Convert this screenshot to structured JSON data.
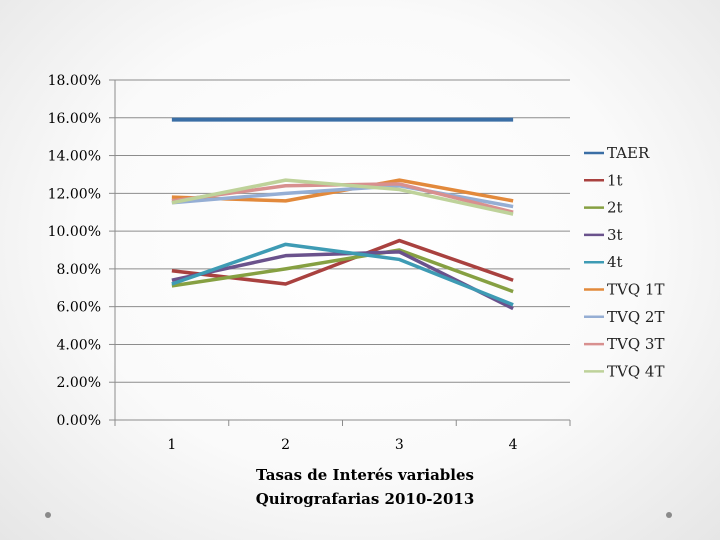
{
  "chart_data": {
    "type": "line",
    "categories": [
      "1",
      "2",
      "3",
      "4"
    ],
    "y_tick_labels": [
      "0.00%",
      "2.00%",
      "4.00%",
      "6.00%",
      "8.00%",
      "10.00%",
      "12.00%",
      "14.00%",
      "16.00%",
      "18.00%"
    ],
    "ylim": [
      0,
      18
    ],
    "grid": true,
    "legend_position": "right",
    "xlabel_lines": [
      "Tasas de Interés variables",
      "Quirografarias 2010-2013"
    ],
    "series": [
      {
        "name": "TAER",
        "color": "#3a6ea5",
        "values": [
          15.9,
          15.9,
          15.9,
          15.9
        ]
      },
      {
        "name": "1t",
        "color": "#a9413f",
        "values": [
          7.9,
          7.2,
          9.5,
          7.4
        ]
      },
      {
        "name": "2t",
        "color": "#86a042",
        "values": [
          7.1,
          8.0,
          9.0,
          6.8
        ]
      },
      {
        "name": "3t",
        "color": "#6a528c",
        "values": [
          7.4,
          8.7,
          8.9,
          5.9
        ]
      },
      {
        "name": "4t",
        "color": "#3e9bb4",
        "values": [
          7.2,
          9.3,
          8.5,
          6.1
        ]
      },
      {
        "name": "TVQ 1T",
        "color": "#e2893b",
        "values": [
          11.8,
          11.6,
          12.7,
          11.6
        ]
      },
      {
        "name": "TVQ 2T",
        "color": "#95aed4",
        "values": [
          11.5,
          12.0,
          12.4,
          11.3
        ]
      },
      {
        "name": "TVQ 3T",
        "color": "#d8908f",
        "values": [
          11.6,
          12.4,
          12.5,
          11.0
        ]
      },
      {
        "name": "TVQ 4T",
        "color": "#bed29a",
        "values": [
          11.5,
          12.7,
          12.2,
          10.9
        ]
      }
    ]
  }
}
